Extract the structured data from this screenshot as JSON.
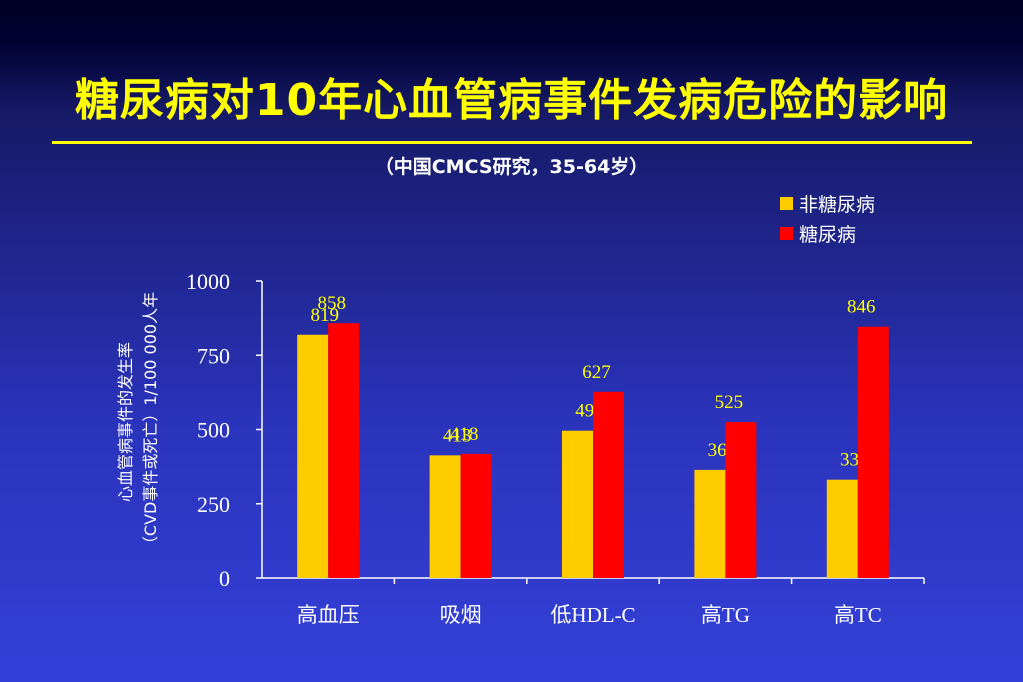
{
  "slide": {
    "title": "糖尿病对10年心血管病事件发病危险的影响",
    "subtitle": "（中国CMCS研究，35-64岁）"
  },
  "colors": {
    "non_diabetes": "#ffcc00",
    "diabetes": "#ff0000",
    "value_label": "#ffff00",
    "axis": "#ffffff"
  },
  "chart_data": {
    "type": "bar",
    "categories": [
      "高血压",
      "吸烟",
      "低HDL-C",
      "高TG",
      "高TC"
    ],
    "series": [
      {
        "name": "非糖尿病",
        "values": [
          819,
          413,
          496,
          364,
          331
        ]
      },
      {
        "name": "糖尿病",
        "values": [
          858,
          418,
          627,
          525,
          846
        ]
      }
    ],
    "ylabel_line1": "心血管病事件的发生率",
    "ylabel_line2": "（CVD事件或死亡）1/100 000人年",
    "ylim": [
      0,
      1000
    ],
    "yticks": [
      0,
      250,
      500,
      750,
      1000
    ],
    "legend_position": "top-right",
    "grid": false
  }
}
